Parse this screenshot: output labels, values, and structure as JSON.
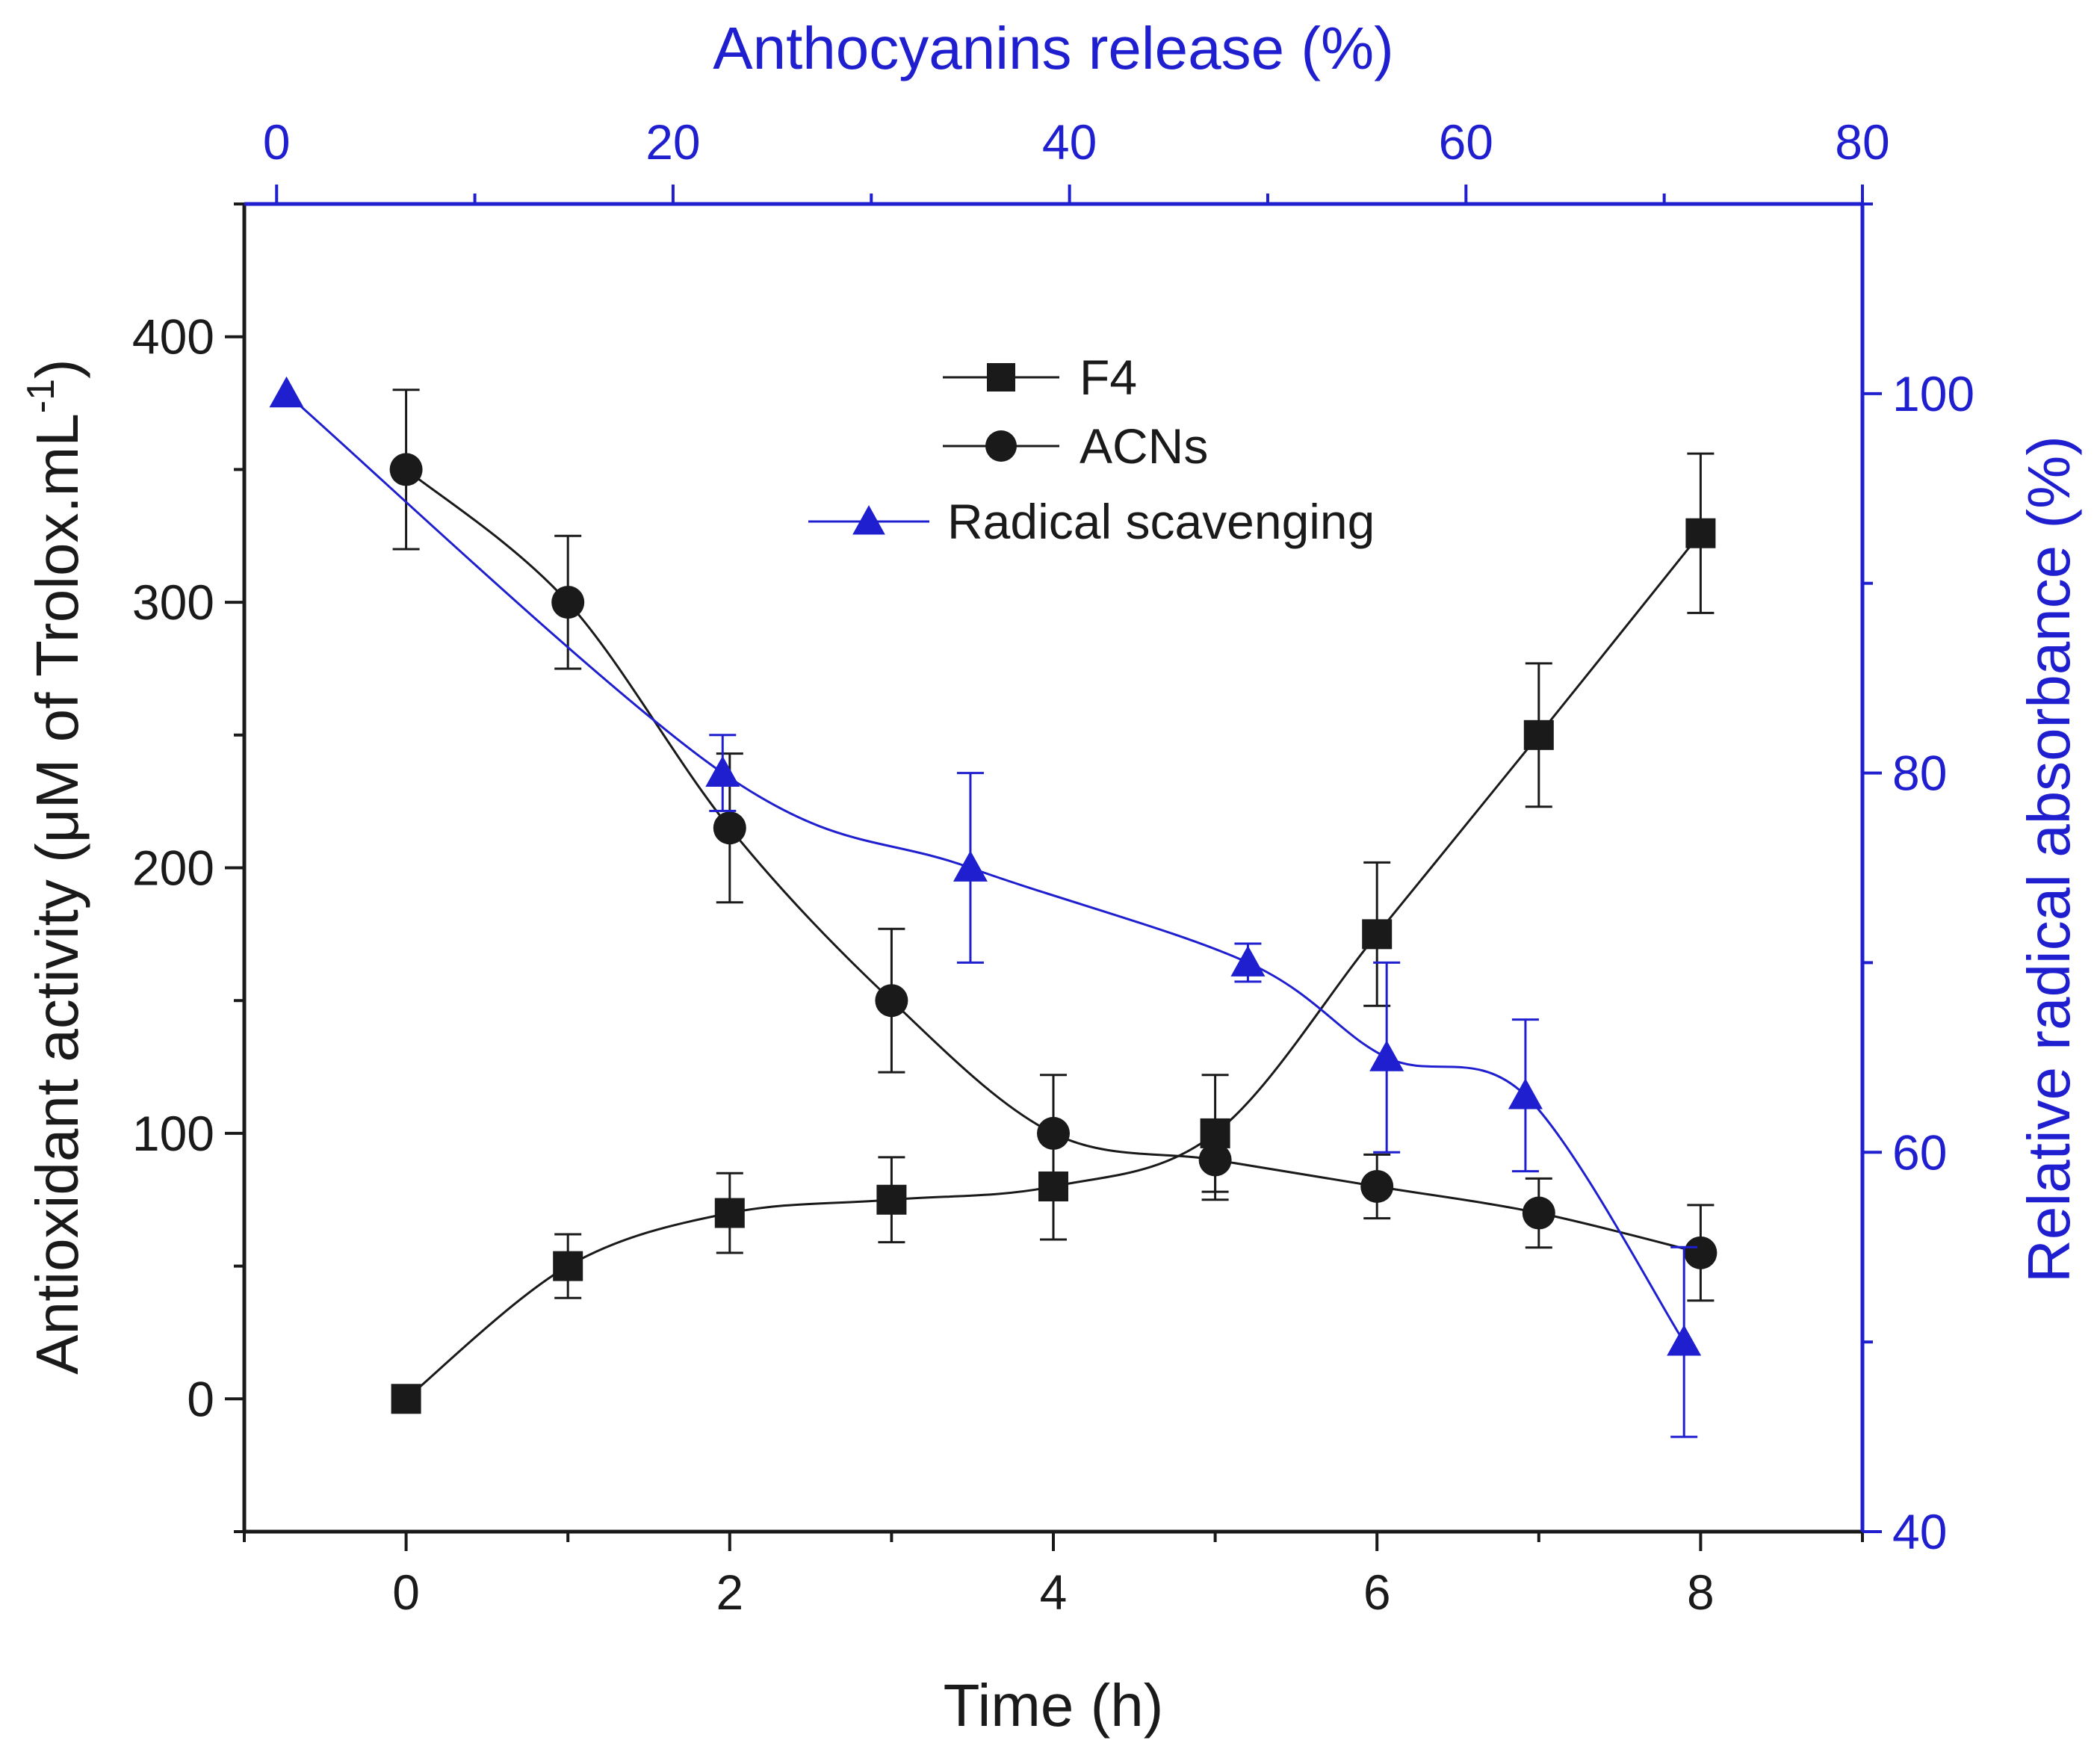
{
  "chart_data": {
    "type": "line",
    "title": "",
    "xlabel": "Time (h)",
    "ylabel": "Antioxidant activity (μM of Trolox.mL",
    "ylabel_sup": "-1",
    "ylabel_close": ")",
    "y2label": "Relative radical absorbance (%)",
    "x2label": "Anthocyanins release (%)",
    "xlim": [
      -1,
      9
    ],
    "ylim": [
      -50,
      450
    ],
    "y2lim": [
      40,
      110
    ],
    "x2lim": [
      -1.63,
      80
    ],
    "x_ticks": [
      "0",
      "2",
      "4",
      "6",
      "8"
    ],
    "y_ticks": [
      "0",
      "100",
      "200",
      "300",
      "400"
    ],
    "y2_ticks": [
      "40",
      "60",
      "80",
      "100"
    ],
    "x2_ticks": [
      "0",
      "20",
      "40",
      "60",
      "80"
    ],
    "legend_position": "top-center",
    "series": [
      {
        "name": "F4",
        "marker": "square",
        "color": "#1a1a1a",
        "axis": "bottom-left",
        "x": [
          0,
          1,
          2,
          3,
          4,
          5,
          6,
          7,
          8
        ],
        "y": [
          0,
          50,
          70,
          75,
          80,
          100,
          175,
          250,
          326
        ],
        "err": [
          0,
          12,
          15,
          16,
          20,
          22,
          27,
          27,
          30
        ]
      },
      {
        "name": "ACNs",
        "marker": "circle",
        "color": "#1a1a1a",
        "axis": "bottom-left",
        "x": [
          0,
          1,
          2,
          3,
          4,
          5,
          6,
          7,
          8
        ],
        "y": [
          350,
          300,
          215,
          150,
          100,
          90,
          80,
          70,
          55
        ],
        "err": [
          30,
          25,
          28,
          27,
          22,
          15,
          12,
          13,
          18
        ]
      },
      {
        "name": "Radical scavenging",
        "marker": "triangle",
        "color": "#1f1fd0",
        "axis": "top-right",
        "x": [
          0.5,
          22.5,
          35,
          49,
          56,
          63,
          71
        ],
        "y": [
          100,
          80,
          75,
          70,
          65,
          63,
          50
        ],
        "err": [
          0,
          2,
          5,
          1,
          5,
          4,
          5
        ]
      }
    ]
  }
}
